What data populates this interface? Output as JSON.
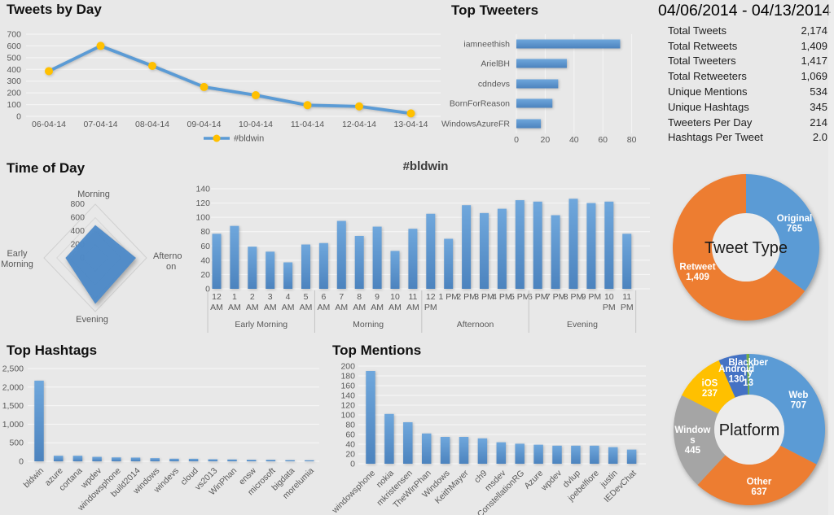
{
  "dashboard": {
    "date_range": "04/06/2014 - 04/13/2014",
    "stats": [
      {
        "label": "Total Tweets",
        "value": "2,174"
      },
      {
        "label": "Total Retweets",
        "value": "1,409"
      },
      {
        "label": "Total Tweeters",
        "value": "1,417"
      },
      {
        "label": "Total Retweeters",
        "value": "1,069"
      },
      {
        "label": "Unique Mentions",
        "value": "534"
      },
      {
        "label": "Unique Hashtags",
        "value": "345"
      },
      {
        "label": "Tweeters Per Day",
        "value": "214"
      },
      {
        "label": "Hashtags Per Tweet",
        "value": "2.0"
      }
    ]
  },
  "titles": {
    "tweets_by_day": "Tweets by Day",
    "top_tweeters": "Top Tweeters",
    "time_of_day": "Time of Day",
    "hourly": "#bldwin",
    "top_hashtags": "Top Hashtags",
    "top_mentions": "Top Mentions"
  },
  "colors": {
    "background": "#E8E8E8",
    "accent_blue": "#5B9BD5",
    "accent_orange": "#ED7D31",
    "accent_gray": "#A5A5A5",
    "accent_yellow": "#FFC000",
    "accent_dark_blue": "#4472C4",
    "accent_green": "#70AD47"
  },
  "chart_data": [
    {
      "id": "tweets-by-day",
      "type": "line",
      "title": "Tweets by Day",
      "categories": [
        "06-04-14",
        "07-04-14",
        "08-04-14",
        "09-04-14",
        "10-04-14",
        "11-04-14",
        "12-04-14",
        "13-04-14"
      ],
      "series": [
        {
          "name": "#bldwin",
          "values": [
            385,
            600,
            430,
            250,
            180,
            95,
            85,
            25
          ]
        }
      ],
      "ylim": [
        0,
        700
      ],
      "ystep": 100,
      "grid": true,
      "legend_position": "bottom",
      "line_color": "#5B9BD5",
      "marker_color": "#FFC000"
    },
    {
      "id": "top-tweeters",
      "type": "bar",
      "orientation": "horizontal",
      "title": "Top Tweeters",
      "categories": [
        "iamneethish",
        "ArielBH",
        "cdndevs",
        "BornForReason",
        "WindowsAzureFR"
      ],
      "values": [
        72,
        35,
        29,
        25,
        17
      ],
      "xlim": [
        0,
        80
      ],
      "xstep": 20,
      "bar_color": "#5B9BD5"
    },
    {
      "id": "time-of-day",
      "type": "radar",
      "title": "Time of Day",
      "categories": [
        "Morning",
        "Afternoon",
        "Evening",
        "Early Morning"
      ],
      "axis_labels_display": [
        [
          "Morning"
        ],
        [
          "Afterno",
          "on"
        ],
        [
          "Evening"
        ],
        [
          "Early",
          "Morning"
        ]
      ],
      "values": [
        490,
        635,
        685,
        465
      ],
      "rlim": [
        0,
        800
      ],
      "rstep": 200,
      "fill_color": "#4E8AC8"
    },
    {
      "id": "hourly-tweets",
      "type": "bar",
      "orientation": "vertical",
      "title": "#bldwin",
      "categories": [
        [
          "12",
          "AM"
        ],
        [
          "1",
          "AM"
        ],
        [
          "2",
          "AM"
        ],
        [
          "3",
          "AM"
        ],
        [
          "4",
          "AM"
        ],
        [
          "5",
          "AM"
        ],
        [
          "6",
          "AM"
        ],
        [
          "7",
          "AM"
        ],
        [
          "8",
          "AM"
        ],
        [
          "9",
          "AM"
        ],
        [
          "10",
          "AM"
        ],
        [
          "11",
          "AM"
        ],
        [
          "12",
          "PM"
        ],
        [
          "1 PM"
        ],
        [
          "2 PM"
        ],
        [
          "3 PM"
        ],
        [
          "4 PM"
        ],
        [
          "5 PM"
        ],
        [
          "6 PM"
        ],
        [
          "7 PM"
        ],
        [
          "8 PM"
        ],
        [
          "9 PM"
        ],
        [
          "10",
          "PM"
        ],
        [
          "11",
          "PM"
        ]
      ],
      "values": [
        77,
        88,
        59,
        52,
        37,
        62,
        64,
        95,
        74,
        87,
        53,
        84,
        105,
        70,
        117,
        106,
        112,
        124,
        122,
        103,
        126,
        120,
        122,
        77
      ],
      "groups": [
        {
          "label": "Early Morning",
          "count": 6
        },
        {
          "label": "Morning",
          "count": 6
        },
        {
          "label": "Afternoon",
          "count": 6
        },
        {
          "label": "Evening",
          "count": 6
        }
      ],
      "ylim": [
        0,
        140
      ],
      "ystep": 20,
      "bar_color": "#5B9BD5"
    },
    {
      "id": "tweet-type",
      "type": "donut",
      "center_label": "Tweet Type",
      "slices": [
        {
          "name": "Original",
          "value": 765,
          "display": "765",
          "color": "#5B9BD5",
          "label_lines": [
            "Original",
            "765"
          ]
        },
        {
          "name": "Retweet",
          "value": 1409,
          "display": "1,409",
          "color": "#ED7D31",
          "label_lines": [
            "Retweet",
            "1,409"
          ]
        }
      ]
    },
    {
      "id": "top-hashtags",
      "type": "bar",
      "orientation": "vertical",
      "title": "Top Hashtags",
      "rotate_labels": 45,
      "categories": [
        "bldwin",
        "azure",
        "cortana",
        "wpdev",
        "windowsphone",
        "build2014",
        "windows",
        "windevs",
        "cloud",
        "vs2013",
        "WinPhan",
        "ensw",
        "microsoft",
        "bigdata",
        "morelumia"
      ],
      "values": [
        2174,
        150,
        150,
        120,
        105,
        100,
        85,
        70,
        68,
        55,
        50,
        42,
        40,
        32,
        28
      ],
      "ylim": [
        0,
        2500
      ],
      "ystep": 500,
      "bar_color": "#5B9BD5"
    },
    {
      "id": "top-mentions",
      "type": "bar",
      "orientation": "vertical",
      "title": "Top Mentions",
      "rotate_labels": 45,
      "categories": [
        "windowsphone",
        "nokia",
        "mkristensen",
        "TheWinPhan",
        "Windows",
        "KeithMayer",
        "ch9",
        "msdev",
        "ConstellationRG",
        "Azure",
        "wpdev",
        "dvlup",
        "joebelfiore",
        "justin",
        "IEDevChat"
      ],
      "values": [
        190,
        102,
        85,
        62,
        55,
        55,
        52,
        44,
        41,
        39,
        37,
        37,
        37,
        34,
        29
      ],
      "ylim": [
        0,
        200
      ],
      "ystep": 20,
      "bar_color": "#5B9BD5"
    },
    {
      "id": "platform",
      "type": "donut",
      "center_label": "Platform",
      "slices": [
        {
          "name": "Web",
          "value": 707,
          "display": "707",
          "color": "#5B9BD5",
          "label_lines": [
            "Web",
            "707"
          ]
        },
        {
          "name": "Other",
          "value": 637,
          "display": "637",
          "color": "#ED7D31",
          "label_lines": [
            "Other",
            "637"
          ]
        },
        {
          "name": "Windows",
          "value": 445,
          "display": "445",
          "color": "#A5A5A5",
          "label_lines": [
            "Window",
            "s",
            "445"
          ]
        },
        {
          "name": "iOS",
          "value": 237,
          "display": "237",
          "color": "#FFC000",
          "label_lines": [
            "iOS",
            "237"
          ]
        },
        {
          "name": "Android",
          "value": 130,
          "display": "130",
          "color": "#4472C4",
          "label_lines": [
            "Android",
            "130"
          ]
        },
        {
          "name": "Blackberry",
          "value": 13,
          "display": "13",
          "color": "#70AD47",
          "label_lines": [
            "Blackber",
            "ry",
            "13"
          ]
        }
      ]
    }
  ]
}
